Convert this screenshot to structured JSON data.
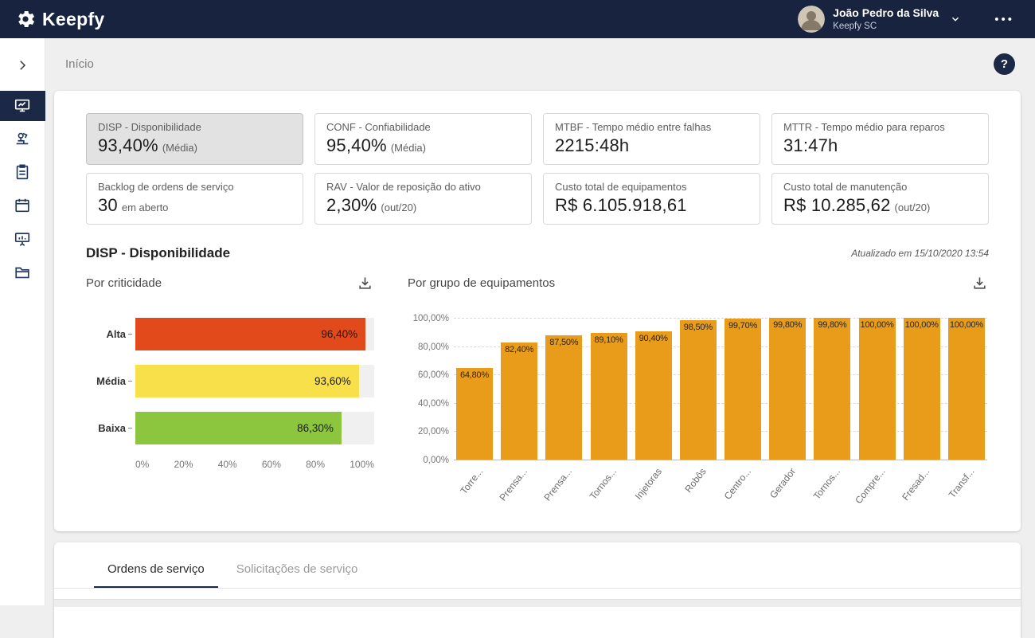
{
  "topbar": {
    "brand": "Keepfy",
    "user": {
      "name": "João Pedro da Silva",
      "org": "Keepfy SC"
    },
    "more_menu": "•••"
  },
  "sidebar": {
    "items": [
      {
        "id": "collapse-toggle",
        "icon": "chevron-right-icon",
        "active": false
      },
      {
        "id": "dashboard",
        "icon": "dashboard-icon",
        "active": true
      },
      {
        "id": "equipment",
        "icon": "equipment-icon",
        "active": false
      },
      {
        "id": "work-orders",
        "icon": "clipboard-icon",
        "active": false
      },
      {
        "id": "calendar",
        "icon": "calendar-icon",
        "active": false
      },
      {
        "id": "monitoring",
        "icon": "presentation-icon",
        "active": false
      },
      {
        "id": "files",
        "icon": "folder-icon",
        "active": false
      }
    ]
  },
  "breadcrumb": "Início",
  "help_label": "?",
  "kpis": [
    {
      "id": "disp",
      "label": "DISP - Disponibilidade",
      "value": "93,40%",
      "suffix": "(Média)",
      "selected": true
    },
    {
      "id": "conf",
      "label": "CONF - Confiabilidade",
      "value": "95,40%",
      "suffix": "(Média)",
      "selected": false
    },
    {
      "id": "mtbf",
      "label": "MTBF - Tempo médio entre falhas",
      "value": "2215:48h",
      "suffix": "",
      "selected": false
    },
    {
      "id": "mttr",
      "label": "MTTR - Tempo médio para reparos",
      "value": "31:47h",
      "suffix": "",
      "selected": false
    },
    {
      "id": "backlog",
      "label": "Backlog de ordens de serviço",
      "value": "30",
      "suffix": "em aberto",
      "selected": false
    },
    {
      "id": "rav",
      "label": "RAV - Valor de reposição do ativo",
      "value": "2,30%",
      "suffix": "(out/20)",
      "selected": false
    },
    {
      "id": "custo-equipamentos",
      "label": "Custo total de equipamentos",
      "value": "R$ 6.105.918,61",
      "suffix": "",
      "selected": false
    },
    {
      "id": "custo-manutencao",
      "label": "Custo total de manutenção",
      "value": "R$ 10.285,62",
      "suffix": "(out/20)",
      "selected": false
    }
  ],
  "section": {
    "title": "DISP - Disponibilidade",
    "updated": "Atualizado em 15/10/2020 13:54"
  },
  "chart_data": [
    {
      "type": "bar",
      "orientation": "horizontal",
      "title": "Por criticidade",
      "categories": [
        "Alta",
        "Média",
        "Baixa"
      ],
      "values": [
        96.4,
        93.6,
        86.3
      ],
      "value_labels": [
        "96,40%",
        "93,60%",
        "86,30%"
      ],
      "colors": [
        "#e2491b",
        "#f8e04a",
        "#8cc63f"
      ],
      "x_ticks": [
        "0%",
        "20%",
        "40%",
        "60%",
        "80%",
        "100%"
      ],
      "xlim": [
        0,
        100
      ],
      "grid": false,
      "legend": "none"
    },
    {
      "type": "bar",
      "orientation": "vertical",
      "title": "Por grupo de equipamentos",
      "categories": [
        "Torre...",
        "Prensa...",
        "Prensa...",
        "Tornos...",
        "Injetoras",
        "Robôs",
        "Centro...",
        "Gerador",
        "Tornos...",
        "Compre...",
        "Fresad...",
        "Transf..."
      ],
      "values": [
        64.8,
        82.4,
        87.5,
        89.1,
        90.4,
        98.5,
        99.7,
        99.8,
        99.8,
        100.0,
        100.0,
        100.0
      ],
      "value_labels": [
        "64,80%",
        "82,40%",
        "87,50%",
        "89,10%",
        "90,40%",
        "98,50%",
        "99,70%",
        "99,80%",
        "99,80%",
        "100,00%",
        "100,00%",
        "100,00%"
      ],
      "bar_color": "#e89c1a",
      "y_ticks": [
        "0,00%",
        "20,00%",
        "40,00%",
        "60,00%",
        "80,00%",
        "100,00%"
      ],
      "ylim": [
        0,
        100
      ],
      "grid": true,
      "legend": "none"
    }
  ],
  "tabs": [
    {
      "id": "ordens-de-servico",
      "label": "Ordens de serviço",
      "active": true
    },
    {
      "id": "solicitacoes-de-servico",
      "label": "Solicitações de serviço",
      "active": false
    }
  ],
  "colors": {
    "navy": "#17233f",
    "accent_navy": "#1b2946",
    "orange_bar": "#e89c1a",
    "crit_alta": "#e2491b",
    "crit_media": "#f8e04a",
    "crit_baixa": "#8cc63f"
  }
}
